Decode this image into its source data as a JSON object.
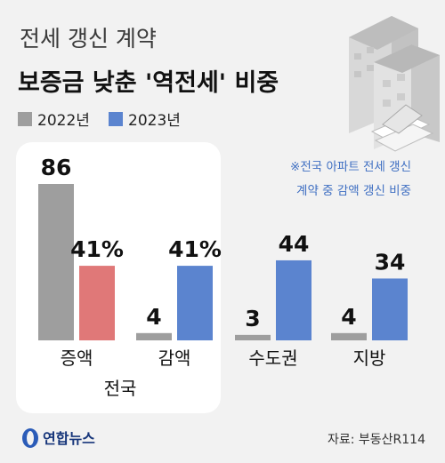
{
  "header": {
    "subtitle": "전세 갱신 계약",
    "title": "보증금 낮춘 '역전세' 비중"
  },
  "legend": [
    {
      "label": "2022년",
      "color": "#9e9e9e"
    },
    {
      "label": "2023년",
      "color": "#5b84cf"
    }
  ],
  "note_lines": [
    "※전국 아파트 전세 갱신",
    "계약 중 감액 갱신 비중"
  ],
  "footer": {
    "source": "자료: 부동산R114",
    "logo_text": "연합뉴스"
  },
  "colors": {
    "y2022": "#9e9e9e",
    "y2023": "#5b84cf",
    "increase_2023": "#e07878",
    "increase_label": "#d96a6a",
    "decrease_label": "#4a78c8",
    "panel": "#ffffff",
    "background": "#f2f2f2"
  },
  "chart_data": {
    "type": "bar",
    "title": "보증금 낮춘 '역전세' 비중",
    "subtitle": "전세 갱신 계약",
    "categories": [
      "증액",
      "감액",
      "수도권",
      "지방"
    ],
    "group_label": {
      "text": "전국",
      "spans": [
        "증액",
        "감액"
      ]
    },
    "series": [
      {
        "name": "2022년",
        "values": [
          86,
          4,
          3,
          4
        ]
      },
      {
        "name": "2023년",
        "values": [
          41,
          41,
          44,
          34
        ]
      }
    ],
    "value_labels": {
      "2022년": [
        "86",
        "4",
        "3",
        "4"
      ],
      "2023년": [
        "41%",
        "41%",
        "44",
        "34"
      ]
    },
    "unit": "%",
    "ylim": [
      0,
      86
    ]
  }
}
